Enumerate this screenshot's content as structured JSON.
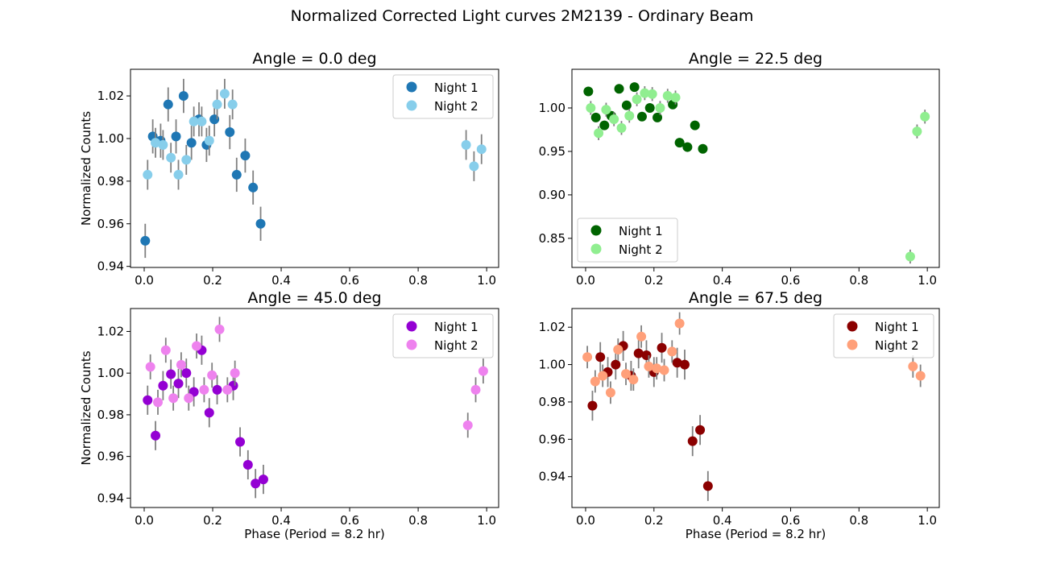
{
  "figure": {
    "title": "Normalized Corrected Light curves 2M2139 - Ordinary Beam"
  },
  "chart_data": [
    {
      "type": "scatter",
      "title": "Angle = 0.0 deg",
      "xlabel": "",
      "ylabel": "Normalized Counts",
      "xlim": [
        -0.04,
        1.035
      ],
      "ylim": [
        0.9395,
        1.0325
      ],
      "xticks": [
        "0.0",
        "0.2",
        "0.4",
        "0.6",
        "0.8",
        "1.0"
      ],
      "yticks": [
        "0.94",
        "0.96",
        "0.98",
        "1.00",
        "1.02"
      ],
      "legend_position": "upper right",
      "series": [
        {
          "name": "Night 1",
          "color": "#1f77b4",
          "x": [
            0.003,
            0.025,
            0.048,
            0.07,
            0.093,
            0.115,
            0.138,
            0.16,
            0.182,
            0.205,
            0.25,
            0.27,
            0.295,
            0.318,
            0.34
          ],
          "y": [
            0.952,
            1.001,
            0.999,
            1.016,
            1.001,
            1.02,
            0.998,
            1.009,
            0.997,
            1.009,
            1.003,
            0.983,
            0.992,
            0.977,
            0.96
          ],
          "err": [
            0.008,
            0.008,
            0.008,
            0.008,
            0.008,
            0.008,
            0.008,
            0.008,
            0.008,
            0.008,
            0.008,
            0.008,
            0.008,
            0.008,
            0.008
          ]
        },
        {
          "name": "Night 2",
          "color": "#87ceeb",
          "x": [
            0.01,
            0.033,
            0.055,
            0.078,
            0.1,
            0.123,
            0.145,
            0.168,
            0.19,
            0.213,
            0.235,
            0.258,
            0.94,
            0.963,
            0.985
          ],
          "y": [
            0.983,
            0.998,
            0.997,
            0.991,
            0.983,
            0.99,
            1.008,
            1.008,
            0.999,
            1.016,
            1.021,
            1.016,
            0.997,
            0.987,
            0.995
          ],
          "err": [
            0.007,
            0.007,
            0.007,
            0.007,
            0.007,
            0.007,
            0.007,
            0.007,
            0.007,
            0.007,
            0.007,
            0.007,
            0.007,
            0.007,
            0.007
          ]
        }
      ]
    },
    {
      "type": "scatter",
      "title": "Angle = 22.5 deg",
      "xlabel": "",
      "ylabel": "",
      "xlim": [
        -0.04,
        1.035
      ],
      "ylim": [
        0.8165,
        1.0445
      ],
      "xticks": [
        "0.0",
        "0.2",
        "0.4",
        "0.6",
        "0.8",
        "1.0"
      ],
      "yticks": [
        "0.85",
        "0.90",
        "0.95",
        "1.00"
      ],
      "legend_position": "lower left",
      "series": [
        {
          "name": "Night 1",
          "color": "#006400",
          "x": [
            0.008,
            0.03,
            0.055,
            0.075,
            0.098,
            0.12,
            0.143,
            0.165,
            0.188,
            0.21,
            0.255,
            0.275,
            0.298,
            0.32,
            0.343
          ],
          "y": [
            1.019,
            0.989,
            0.98,
            0.991,
            1.022,
            1.003,
            1.024,
            0.99,
            1.0,
            0.989,
            1.004,
            0.96,
            0.955,
            0.98,
            0.953
          ],
          "err": [
            0.005,
            0.005,
            0.005,
            0.005,
            0.005,
            0.005,
            0.005,
            0.005,
            0.005,
            0.005,
            0.005,
            0.005,
            0.005,
            0.005,
            0.005
          ]
        },
        {
          "name": "Night 2",
          "color": "#90ee90",
          "x": [
            0.015,
            0.038,
            0.06,
            0.083,
            0.105,
            0.128,
            0.15,
            0.173,
            0.195,
            0.218,
            0.24,
            0.263,
            0.95,
            0.97,
            0.993
          ],
          "y": [
            1.0,
            0.971,
            0.998,
            0.987,
            0.977,
            0.991,
            1.01,
            1.017,
            1.016,
            1.0,
            1.014,
            1.012,
            0.829,
            0.973,
            0.99
          ],
          "err": [
            0.008,
            0.008,
            0.008,
            0.008,
            0.008,
            0.008,
            0.008,
            0.008,
            0.008,
            0.008,
            0.008,
            0.008,
            0.008,
            0.008,
            0.008
          ]
        }
      ]
    },
    {
      "type": "scatter",
      "title": "Angle = 45.0 deg",
      "xlabel": "Phase (Period = 8.2 hr)",
      "ylabel": "Normalized Counts",
      "xlim": [
        -0.04,
        1.035
      ],
      "ylim": [
        0.9355,
        1.031
      ],
      "xticks": [
        "0.0",
        "0.2",
        "0.4",
        "0.6",
        "0.8",
        "1.0"
      ],
      "yticks": [
        "0.94",
        "0.96",
        "0.98",
        "1.00",
        "1.02"
      ],
      "legend_position": "upper right",
      "series": [
        {
          "name": "Night 1",
          "color": "#9400d3",
          "x": [
            0.01,
            0.033,
            0.055,
            0.078,
            0.1,
            0.123,
            0.145,
            0.168,
            0.19,
            0.213,
            0.26,
            0.28,
            0.303,
            0.325,
            0.348
          ],
          "y": [
            0.987,
            0.97,
            0.994,
            0.9995,
            0.995,
            1.0,
            0.991,
            1.011,
            0.981,
            0.992,
            0.994,
            0.967,
            0.956,
            0.947,
            0.949
          ],
          "err": [
            0.007,
            0.007,
            0.007,
            0.007,
            0.007,
            0.007,
            0.007,
            0.007,
            0.007,
            0.007,
            0.007,
            0.007,
            0.007,
            0.007,
            0.007
          ]
        },
        {
          "name": "Night 2",
          "color": "#ee82ee",
          "x": [
            0.018,
            0.04,
            0.063,
            0.085,
            0.108,
            0.13,
            0.153,
            0.175,
            0.198,
            0.22,
            0.243,
            0.265,
            0.945,
            0.968,
            0.99
          ],
          "y": [
            1.003,
            0.986,
            1.011,
            0.988,
            1.004,
            0.988,
            1.013,
            0.992,
            0.999,
            1.021,
            0.992,
            1.0,
            0.975,
            0.992,
            1.001
          ],
          "err": [
            0.006,
            0.006,
            0.006,
            0.006,
            0.006,
            0.006,
            0.006,
            0.006,
            0.006,
            0.006,
            0.006,
            0.006,
            0.006,
            0.006,
            0.006
          ]
        }
      ]
    },
    {
      "type": "scatter",
      "title": "Angle = 67.5 deg",
      "xlabel": "Phase (Period = 8.2 hr)",
      "ylabel": "",
      "xlim": [
        -0.04,
        1.035
      ],
      "ylim": [
        0.9235,
        1.03
      ],
      "xticks": [
        "0.0",
        "0.2",
        "0.4",
        "0.6",
        "0.8",
        "1.0"
      ],
      "yticks": [
        "0.94",
        "0.96",
        "0.98",
        "1.00",
        "1.02"
      ],
      "legend_position": "upper right",
      "series": [
        {
          "name": "Night 1",
          "color": "#8b0000",
          "x": [
            0.02,
            0.043,
            0.065,
            0.088,
            0.11,
            0.133,
            0.155,
            0.178,
            0.2,
            0.223,
            0.268,
            0.29,
            0.313,
            0.335,
            0.358
          ],
          "y": [
            0.978,
            1.004,
            0.996,
            1.0,
            1.01,
            0.994,
            1.006,
            1.005,
            0.996,
            1.009,
            1.001,
            1.0,
            0.959,
            0.965,
            0.935
          ],
          "err": [
            0.008,
            0.008,
            0.008,
            0.008,
            0.008,
            0.008,
            0.008,
            0.008,
            0.008,
            0.008,
            0.008,
            0.008,
            0.008,
            0.008,
            0.008
          ]
        },
        {
          "name": "Night 2",
          "color": "#ffa07a",
          "x": [
            0.005,
            0.028,
            0.05,
            0.073,
            0.095,
            0.118,
            0.14,
            0.163,
            0.185,
            0.208,
            0.23,
            0.253,
            0.275,
            0.958,
            0.98
          ],
          "y": [
            1.004,
            0.991,
            0.994,
            0.985,
            1.008,
            0.995,
            0.992,
            1.015,
            0.999,
            0.998,
            0.997,
            1.007,
            1.022,
            0.999,
            0.994
          ],
          "err": [
            0.006,
            0.006,
            0.006,
            0.006,
            0.006,
            0.006,
            0.006,
            0.006,
            0.006,
            0.006,
            0.006,
            0.006,
            0.006,
            0.006,
            0.006
          ]
        }
      ]
    }
  ]
}
